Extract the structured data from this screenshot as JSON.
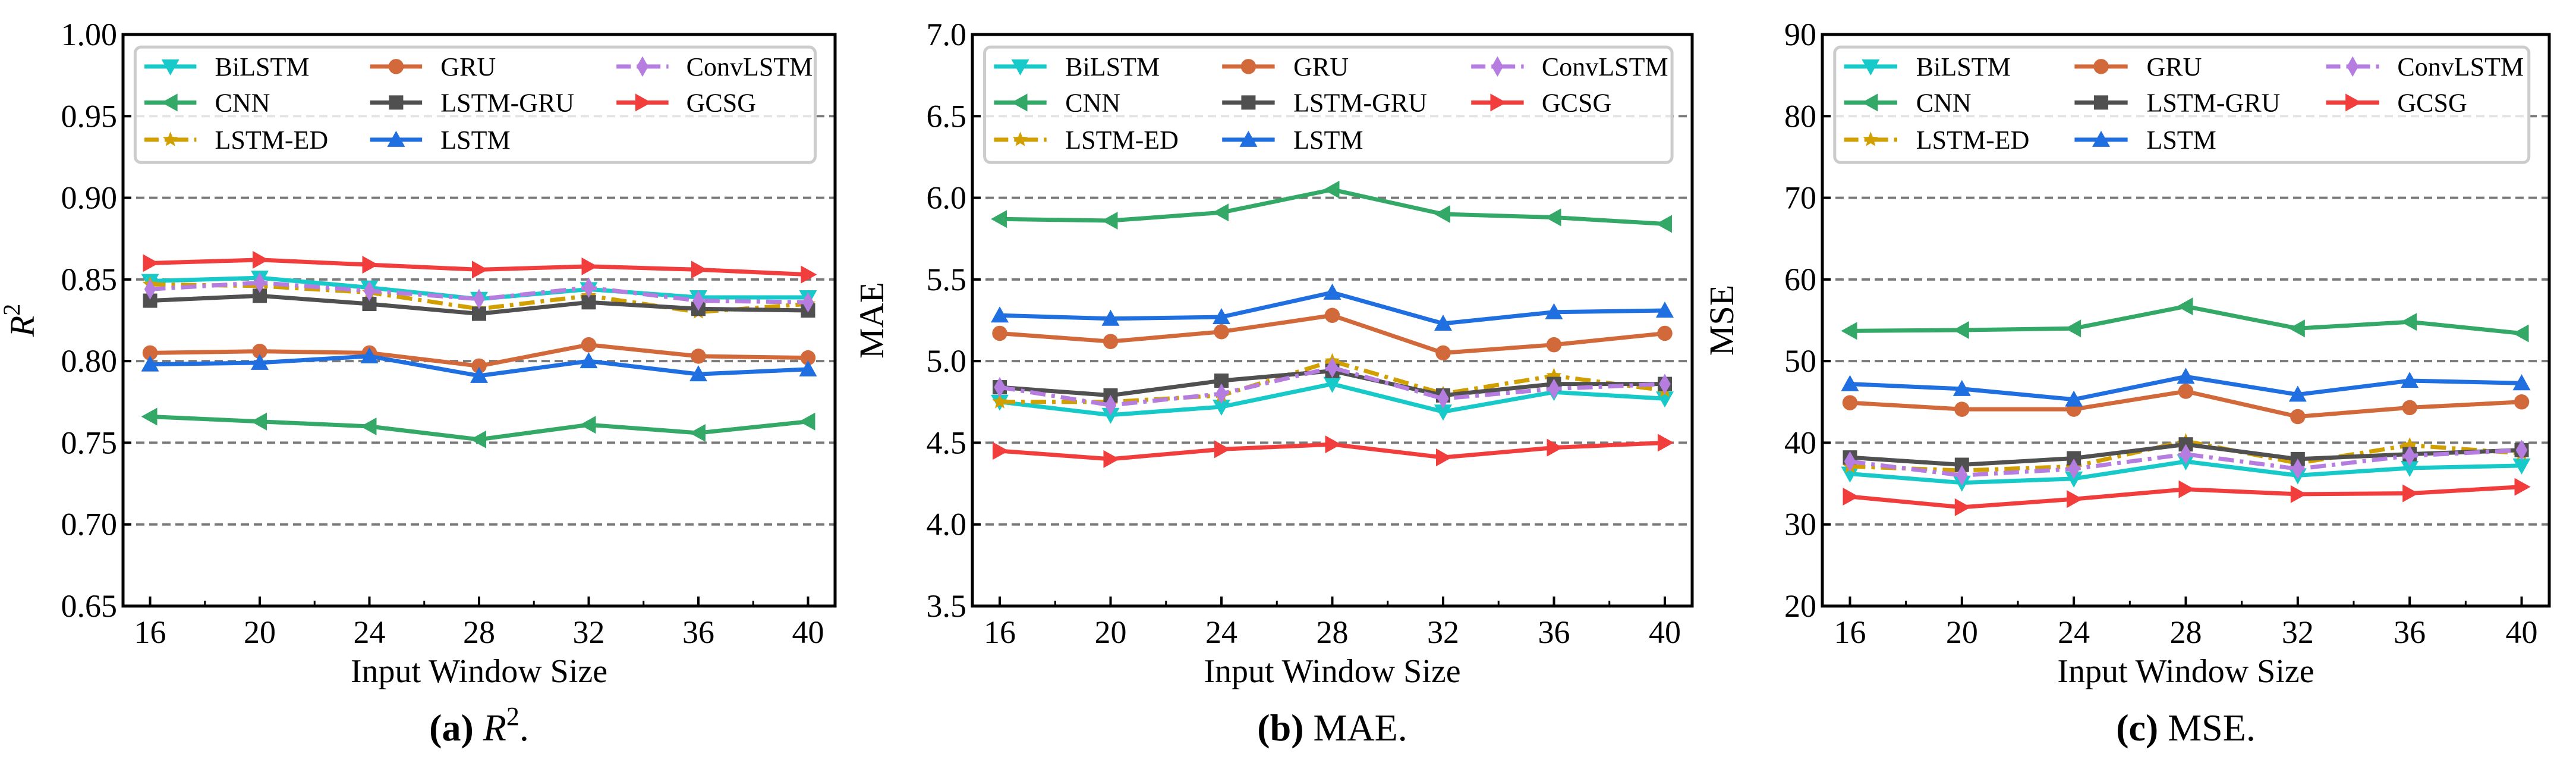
{
  "series_styles": {
    "BiLSTM": {
      "color": "#17c9c9",
      "marker": "triangle-down",
      "dash": "solid"
    },
    "CNN": {
      "color": "#33a867",
      "marker": "triangle-left",
      "dash": "solid"
    },
    "LSTM-ED": {
      "color": "#d1a000",
      "marker": "star",
      "dash": "dashdot"
    },
    "GRU": {
      "color": "#d2693a",
      "marker": "circle",
      "dash": "solid"
    },
    "LSTM-GRU": {
      "color": "#505050",
      "marker": "square",
      "dash": "solid"
    },
    "LSTM": {
      "color": "#1f6fe0",
      "marker": "triangle-up",
      "dash": "solid"
    },
    "ConvLSTM": {
      "color": "#b57de0",
      "marker": "diamond",
      "dash": "dashdot"
    },
    "GCSG": {
      "color": "#f23d3d",
      "marker": "triangle-right",
      "dash": "solid"
    }
  },
  "legend_order": [
    "BiLSTM",
    "GRU",
    "ConvLSTM",
    "CNN",
    "LSTM-GRU",
    "GCSG",
    "LSTM-ED",
    "LSTM"
  ],
  "chart_data": [
    {
      "type": "line",
      "id": "a",
      "caption": {
        "label": "(a)",
        "text": "R",
        "sup": "2",
        "end": "."
      },
      "xlabel": "Input Window Size",
      "ylabel": "R",
      "ylabel_sup": "2",
      "x": [
        16,
        20,
        24,
        28,
        32,
        36,
        40
      ],
      "ylim": [
        0.65,
        1.0
      ],
      "yticks": [
        "0.65",
        "0.70",
        "0.75",
        "0.80",
        "0.85",
        "0.90",
        "0.95",
        "1.00"
      ],
      "grid": true,
      "legend": "top",
      "series": [
        {
          "name": "BiLSTM",
          "values": [
            0.849,
            0.851,
            0.845,
            0.838,
            0.844,
            0.839,
            0.839
          ]
        },
        {
          "name": "CNN",
          "values": [
            0.766,
            0.763,
            0.76,
            0.752,
            0.761,
            0.756,
            0.763
          ]
        },
        {
          "name": "LSTM-ED",
          "values": [
            0.847,
            0.846,
            0.842,
            0.832,
            0.84,
            0.83,
            0.835
          ]
        },
        {
          "name": "GRU",
          "values": [
            0.805,
            0.806,
            0.805,
            0.797,
            0.81,
            0.803,
            0.802
          ]
        },
        {
          "name": "LSTM-GRU",
          "values": [
            0.837,
            0.84,
            0.835,
            0.829,
            0.836,
            0.832,
            0.831
          ]
        },
        {
          "name": "LSTM",
          "values": [
            0.798,
            0.799,
            0.803,
            0.791,
            0.8,
            0.792,
            0.795
          ]
        },
        {
          "name": "ConvLSTM",
          "values": [
            0.844,
            0.848,
            0.843,
            0.838,
            0.845,
            0.837,
            0.836
          ]
        },
        {
          "name": "GCSG",
          "values": [
            0.86,
            0.862,
            0.859,
            0.856,
            0.858,
            0.856,
            0.853
          ]
        }
      ]
    },
    {
      "type": "line",
      "id": "b",
      "caption": {
        "label": "(b)",
        "text": "MAE.",
        "sup": "",
        "end": ""
      },
      "xlabel": "Input Window Size",
      "ylabel": "MAE",
      "ylabel_sup": "",
      "x": [
        16,
        20,
        24,
        28,
        32,
        36,
        40
      ],
      "ylim": [
        3.5,
        7.0
      ],
      "yticks": [
        "3.5",
        "4.0",
        "4.5",
        "5.0",
        "5.5",
        "6.0",
        "6.5",
        "7.0"
      ],
      "grid": true,
      "legend": "top",
      "series": [
        {
          "name": "BiLSTM",
          "values": [
            4.75,
            4.67,
            4.72,
            4.86,
            4.69,
            4.81,
            4.77
          ]
        },
        {
          "name": "CNN",
          "values": [
            5.87,
            5.86,
            5.91,
            6.05,
            5.9,
            5.88,
            5.84
          ]
        },
        {
          "name": "LSTM-ED",
          "values": [
            4.75,
            4.75,
            4.79,
            5.0,
            4.8,
            4.91,
            4.82
          ]
        },
        {
          "name": "GRU",
          "values": [
            5.17,
            5.12,
            5.18,
            5.28,
            5.05,
            5.1,
            5.17
          ]
        },
        {
          "name": "LSTM-GRU",
          "values": [
            4.84,
            4.79,
            4.88,
            4.94,
            4.79,
            4.86,
            4.86
          ]
        },
        {
          "name": "LSTM",
          "values": [
            5.28,
            5.26,
            5.27,
            5.42,
            5.23,
            5.3,
            5.31
          ]
        },
        {
          "name": "ConvLSTM",
          "values": [
            4.84,
            4.73,
            4.8,
            4.96,
            4.77,
            4.83,
            4.86
          ]
        },
        {
          "name": "GCSG",
          "values": [
            4.45,
            4.4,
            4.46,
            4.49,
            4.41,
            4.47,
            4.5
          ]
        }
      ]
    },
    {
      "type": "line",
      "id": "c",
      "caption": {
        "label": "(c)",
        "text": "MSE.",
        "sup": "",
        "end": ""
      },
      "xlabel": "Input Window Size",
      "ylabel": "MSE",
      "ylabel_sup": "",
      "x": [
        16,
        20,
        24,
        28,
        32,
        36,
        40
      ],
      "ylim": [
        20,
        90
      ],
      "yticks": [
        "20",
        "30",
        "40",
        "50",
        "60",
        "70",
        "80",
        "90"
      ],
      "grid": true,
      "legend": "top",
      "series": [
        {
          "name": "BiLSTM",
          "values": [
            36.2,
            35.1,
            35.6,
            37.7,
            36.0,
            36.9,
            37.2
          ]
        },
        {
          "name": "CNN",
          "values": [
            53.7,
            53.8,
            54.0,
            56.7,
            54.0,
            54.8,
            53.4
          ]
        },
        {
          "name": "LSTM-ED",
          "values": [
            37.1,
            36.6,
            37.1,
            40.2,
            37.5,
            39.7,
            38.7
          ]
        },
        {
          "name": "GRU",
          "values": [
            44.9,
            44.1,
            44.1,
            46.3,
            43.2,
            44.3,
            45.0
          ]
        },
        {
          "name": "LSTM-GRU",
          "values": [
            38.2,
            37.3,
            38.1,
            39.8,
            38.0,
            38.6,
            39.1
          ]
        },
        {
          "name": "LSTM",
          "values": [
            47.2,
            46.6,
            45.3,
            48.1,
            45.9,
            47.6,
            47.3
          ]
        },
        {
          "name": "ConvLSTM",
          "values": [
            37.7,
            36.0,
            36.8,
            38.6,
            36.8,
            38.4,
            39.1
          ]
        },
        {
          "name": "GCSG",
          "values": [
            33.4,
            32.1,
            33.1,
            34.3,
            33.7,
            33.8,
            34.6
          ]
        }
      ]
    }
  ]
}
